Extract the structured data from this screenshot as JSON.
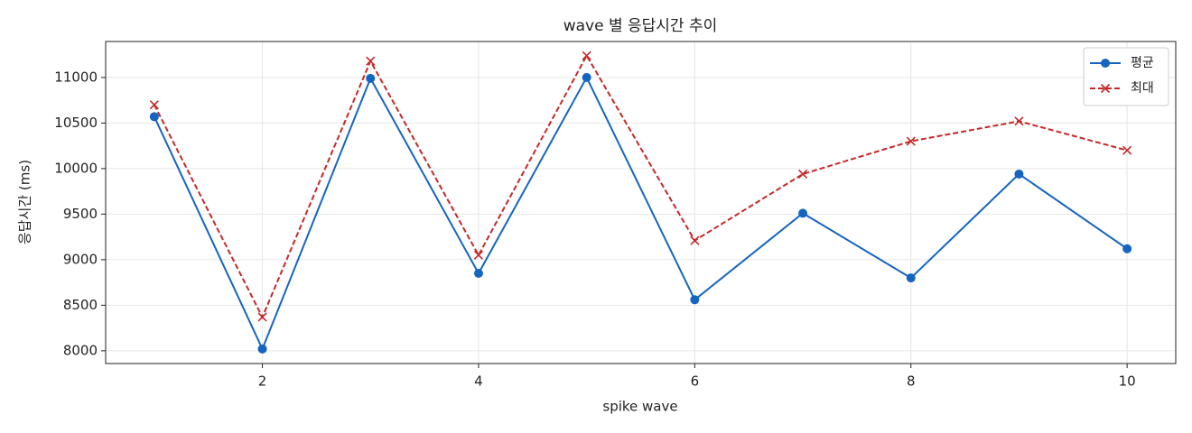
{
  "chart_data": {
    "type": "line",
    "title": "wave 별 응답시간 추이",
    "x_label": "spike wave",
    "y_label": "응답시간 (ms)",
    "x": [
      1,
      2,
      3,
      4,
      5,
      6,
      7,
      8,
      9,
      10
    ],
    "series": [
      {
        "name": "평균",
        "color": "#1565c0",
        "marker": "o",
        "linestyle": "solid",
        "values": [
          10570,
          8020,
          10990,
          8850,
          11000,
          8560,
          9510,
          8800,
          9940,
          9120
        ]
      },
      {
        "name": "최대",
        "color": "#c62828",
        "marker": "x",
        "linestyle": "dashed",
        "values": [
          10700,
          8370,
          11180,
          9050,
          11240,
          9210,
          9940,
          10300,
          10520,
          10200
        ]
      }
    ],
    "xlim": [
      0.55,
      10.45
    ],
    "xticks": [
      2,
      4,
      6,
      8,
      10
    ],
    "ylim": [
      7860,
      11395
    ],
    "yticks": [
      8000,
      8500,
      9000,
      9500,
      10000,
      10500,
      11000
    ],
    "grid": true,
    "legend": "upper right"
  }
}
